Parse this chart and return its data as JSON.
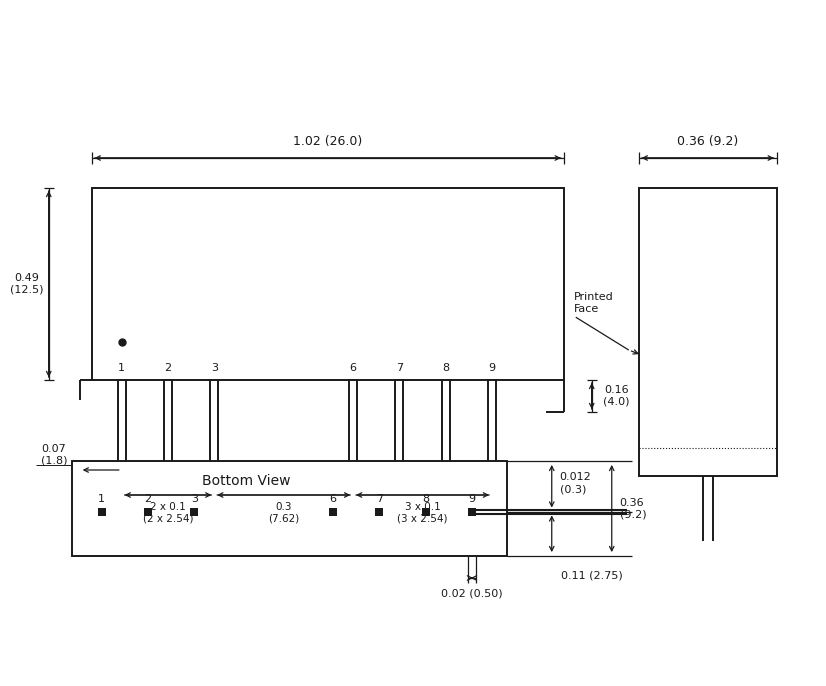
{
  "bg_color": "#ffffff",
  "line_color": "#1a1a1a",
  "text_color": "#1a1a1a",
  "fig_width": 8.0,
  "fig_height": 6.66,
  "annotations": {
    "top_arrow_label": "1.02 (26.0)",
    "height_label": "0.49\n(12.5)",
    "pin_depth_label": "0.16\n(4.0)",
    "pin_offset_label": "0.07\n(1.8)",
    "spacing1_label": "2 x 0.1\n(2 x 2.54)",
    "spacing2_label": "0.3\n(7.62)",
    "spacing3_label": "3 x 0.1\n(3 x 2.54)",
    "side_width_label": "0.36 (9.2)",
    "printed_face_label": "Printed\nFace",
    "bv_title": "Bottom View",
    "bv_pin_width_label": "0.02 (0.50)",
    "bv_depth1_label": "0.012\n(0.3)",
    "bv_depth2_label": "0.11 (2.75)",
    "bv_height_label": "0.36\n(9.2)"
  }
}
